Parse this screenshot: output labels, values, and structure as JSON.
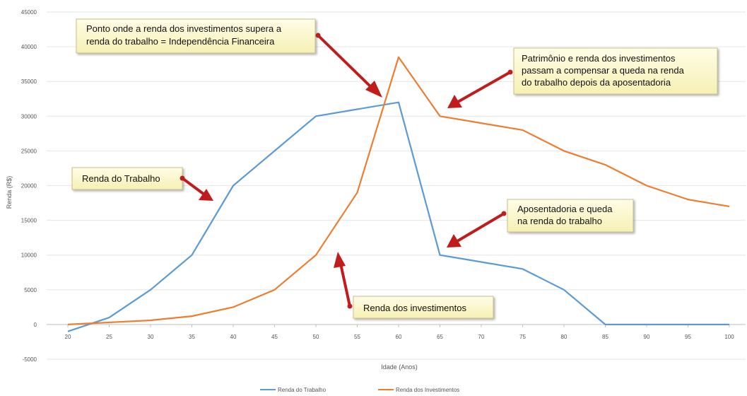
{
  "chart_data": {
    "type": "line",
    "xlabel": "Idade (Anos)",
    "ylabel": "Renda (R$)",
    "x": [
      20,
      25,
      30,
      35,
      40,
      45,
      50,
      55,
      60,
      65,
      70,
      75,
      80,
      85,
      90,
      95,
      100
    ],
    "ylim": [
      -5000,
      45000
    ],
    "yticks": [
      -5000,
      0,
      5000,
      10000,
      15000,
      20000,
      25000,
      30000,
      35000,
      40000,
      45000
    ],
    "grid": true,
    "legend_position": "bottom",
    "series": [
      {
        "name": "Renda do Trabalho",
        "color": "#5b9bd5",
        "values": [
          -1000,
          1000,
          5000,
          10000,
          20000,
          25000,
          30000,
          31000,
          32000,
          10000,
          9000,
          8000,
          5000,
          0,
          0,
          0,
          0
        ]
      },
      {
        "name": "Renda dos Investimentos",
        "color": "#ed7d31",
        "values": [
          0,
          300,
          600,
          1200,
          2500,
          5000,
          10000,
          19000,
          38500,
          30000,
          29000,
          28000,
          25000,
          23000,
          20000,
          18000,
          17000
        ]
      }
    ],
    "annotations": [
      {
        "text": "Ponto onde a renda dos investimentos supera a renda do trabalho = Independência Financeira"
      },
      {
        "text": "Patrimônio e renda dos investimentos passam a compensar a queda na renda do trabalho depois da aposentadoria"
      },
      {
        "text": "Renda do Trabalho"
      },
      {
        "text": "Aposentadoria e queda na renda do trabalho"
      },
      {
        "text": "Renda dos investimentos"
      }
    ]
  }
}
